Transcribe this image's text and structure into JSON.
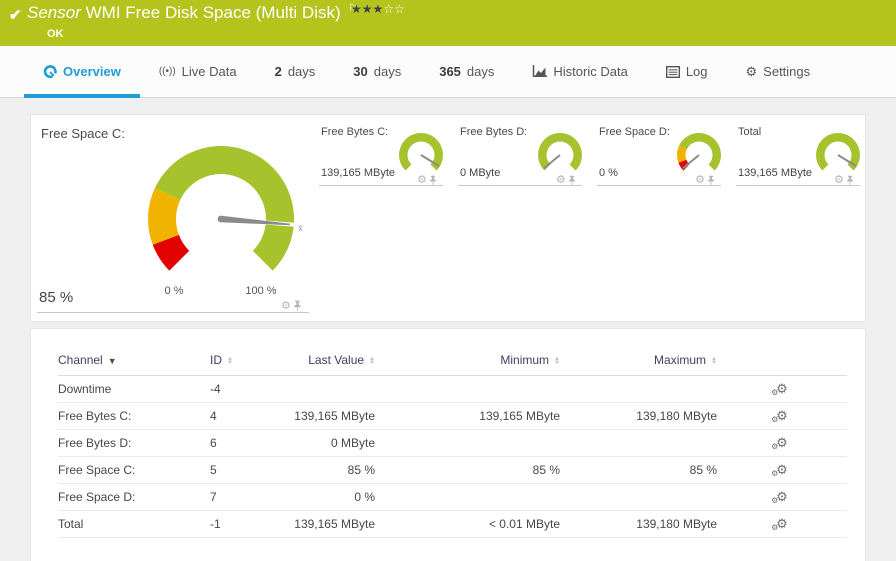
{
  "header": {
    "sensor_label": "Sensor",
    "title": "WMI Free Disk Space (Multi Disk)",
    "status": "OK",
    "rating_filled_stars": "★★★",
    "rating_empty_stars": "☆☆"
  },
  "tabs": [
    {
      "label": "Overview",
      "icon": "gauge-icon",
      "active": true
    },
    {
      "label": "Live Data",
      "icon": "live-data-icon"
    },
    {
      "prefix": "2",
      "suffix": "days"
    },
    {
      "prefix": "30",
      "suffix": "days"
    },
    {
      "prefix": "365",
      "suffix": "days"
    },
    {
      "label": "Historic Data",
      "icon": "historic-chart-icon"
    },
    {
      "label": "Log",
      "icon": "log-icon"
    },
    {
      "label": "Settings",
      "icon": "gear-icon"
    }
  ],
  "colors": {
    "accent_blue": "#1e9ed9",
    "status_green": "#b4c41d",
    "gauge_green": "#a6c22d",
    "gauge_yellow": "#f0b400",
    "gauge_red": "#e30000"
  },
  "gauges": {
    "primary": {
      "title": "Free Space C:",
      "current_value": "85 %",
      "scale_min": "0 %",
      "scale_max": "100 %",
      "average_marker": "x̄",
      "needle_percent": 85,
      "segments": [
        {
          "from": 0,
          "to": 9,
          "color": "#e30000"
        },
        {
          "from": 9,
          "to": 26,
          "color": "#f0b400"
        },
        {
          "from": 26,
          "to": 100,
          "color": "#a6c22d"
        }
      ]
    },
    "secondary": [
      {
        "title": "Free Bytes C:",
        "value": "139,165 MByte",
        "needle_percent": 95,
        "segments": [
          {
            "from": 0,
            "to": 100,
            "color": "#a6c22d"
          }
        ]
      },
      {
        "title": "Free Bytes D:",
        "value": "0 MByte",
        "needle_percent": 2,
        "segments": [
          {
            "from": 0,
            "to": 100,
            "color": "#a6c22d"
          }
        ]
      },
      {
        "title": "Free Space D:",
        "value": "0 %",
        "needle_percent": 2,
        "segments": [
          {
            "from": 0,
            "to": 9,
            "color": "#e30000"
          },
          {
            "from": 9,
            "to": 26,
            "color": "#f0b400"
          },
          {
            "from": 26,
            "to": 100,
            "color": "#a6c22d"
          }
        ]
      },
      {
        "title": "Total",
        "value": "139,165 MByte",
        "needle_percent": 95,
        "segments": [
          {
            "from": 0,
            "to": 100,
            "color": "#a6c22d"
          }
        ]
      }
    ]
  },
  "table": {
    "columns": [
      "Channel",
      "ID",
      "Last Value",
      "Minimum",
      "Maximum"
    ],
    "rows": [
      {
        "channel": "Downtime",
        "id": "-4",
        "last_value": "",
        "minimum": "",
        "maximum": ""
      },
      {
        "channel": "Free Bytes C:",
        "id": "4",
        "last_value": "139,165 MByte",
        "minimum": "139,165 MByte",
        "maximum": "139,180 MByte"
      },
      {
        "channel": "Free Bytes D:",
        "id": "6",
        "last_value": "0 MByte",
        "minimum": "",
        "maximum": ""
      },
      {
        "channel": "Free Space C:",
        "id": "5",
        "last_value": "85 %",
        "minimum": "85 %",
        "maximum": "85 %"
      },
      {
        "channel": "Free Space D:",
        "id": "7",
        "last_value": "0 %",
        "minimum": "",
        "maximum": ""
      },
      {
        "channel": "Total",
        "id": "-1",
        "last_value": "139,165 MByte",
        "minimum": "< 0.01 MByte",
        "maximum": "139,180 MByte"
      }
    ]
  }
}
